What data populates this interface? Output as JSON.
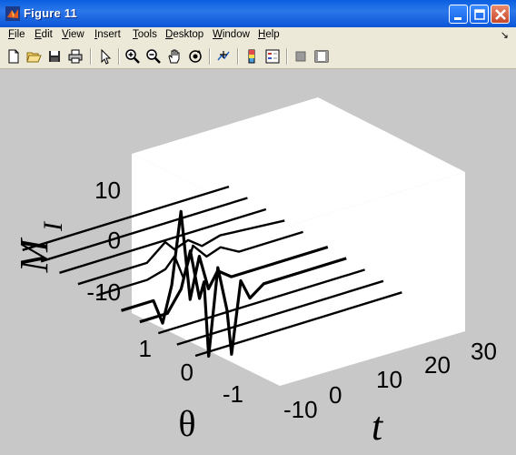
{
  "window": {
    "title": "Figure 11"
  },
  "menu": {
    "items": [
      {
        "key": "F",
        "rest": "ile"
      },
      {
        "key": "E",
        "rest": "dit"
      },
      {
        "key": "V",
        "rest": "iew"
      },
      {
        "key": "I",
        "rest": "nsert"
      },
      {
        "key": "T",
        "rest": "ools"
      },
      {
        "key": "D",
        "rest": "esktop"
      },
      {
        "key": "W",
        "rest": "indow"
      },
      {
        "key": "H",
        "rest": "elp"
      }
    ],
    "dock_symbol": "↘"
  },
  "toolbar": {
    "buttons": [
      "new-file",
      "open-folder",
      "save",
      "print",
      "select-arrow",
      "zoom-in",
      "zoom-out",
      "pan-hand",
      "rotate-3d",
      "data-cursor",
      "colorbar",
      "legend",
      "hide-plot-tools",
      "show-plot-tools"
    ]
  },
  "chart_data": {
    "type": "3d-waterfall-line",
    "zlabel": "M",
    "zlabel_sub": "I",
    "ylabel": "θ",
    "xlabel": "t",
    "z_ticks": [
      "10",
      "0",
      "-10"
    ],
    "theta_ticks": [
      "1",
      "0",
      "-1"
    ],
    "t_ticks": [
      "-10",
      "0",
      "10",
      "20",
      "30"
    ],
    "zlim": [
      -15,
      15
    ],
    "theta_lim": [
      -1.5,
      1.5
    ],
    "t_lim": [
      -15,
      30
    ],
    "grid": false,
    "series": [
      {
        "name": "theta=-1.4",
        "t": [
          -15,
          30
        ],
        "values": [
          0,
          0
        ]
      },
      {
        "name": "theta=-1.1",
        "t": [
          -15,
          30
        ],
        "values": [
          0,
          0
        ]
      },
      {
        "name": "theta=-0.8",
        "t": [
          -15,
          30
        ],
        "values": [
          0,
          0
        ]
      },
      {
        "name": "theta=-0.5",
        "t": [
          -15,
          -9,
          -6,
          -4,
          -2,
          -1,
          0,
          2,
          4,
          5,
          7,
          9,
          12,
          30
        ],
        "values": [
          0,
          0,
          4,
          11,
          1,
          4,
          -11,
          6,
          -3,
          -12,
          2,
          -2,
          0,
          0
        ]
      },
      {
        "name": "theta=-0.2",
        "t": [
          -15,
          -8,
          -6,
          -4,
          -2,
          0,
          2,
          4,
          6,
          9,
          30
        ],
        "values": [
          0,
          0,
          -5,
          2,
          16,
          -2,
          6,
          -1,
          2,
          0,
          0
        ]
      },
      {
        "name": "theta=0.2",
        "t": [
          -15,
          -4,
          0,
          2,
          4,
          6,
          9,
          12,
          16,
          30
        ],
        "values": [
          0,
          0,
          1,
          3,
          -2,
          4,
          1,
          2,
          0,
          0
        ]
      },
      {
        "name": "theta=0.5",
        "t": [
          -15,
          0,
          4,
          6,
          9,
          12,
          16,
          30
        ],
        "values": [
          0,
          0,
          3,
          1,
          2,
          0,
          1,
          0
        ]
      },
      {
        "name": "theta=0.8",
        "t": [
          -15,
          30
        ],
        "values": [
          0,
          0
        ]
      },
      {
        "name": "theta=1.1",
        "t": [
          -15,
          30
        ],
        "values": [
          0,
          0
        ]
      },
      {
        "name": "theta=1.4",
        "t": [
          -15,
          30
        ],
        "values": [
          0,
          0
        ]
      }
    ]
  }
}
